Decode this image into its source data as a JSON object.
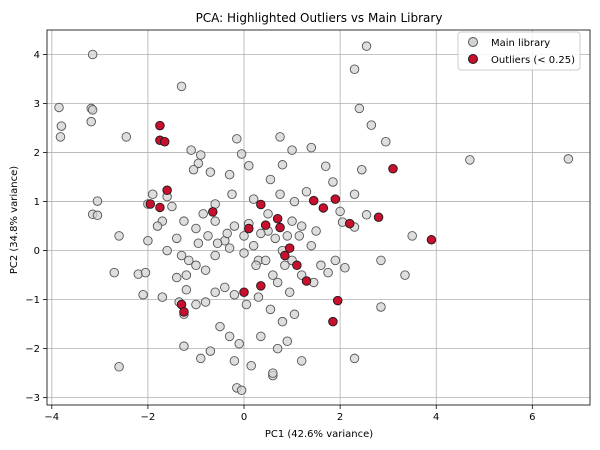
{
  "chart_data": {
    "type": "scatter",
    "title": "PCA: Highlighted Outliers vs Main Library",
    "xlabel": "PC1 (42.6% variance)",
    "ylabel": "PC2 (34.8% variance)",
    "xlim": [
      -4.1,
      7.2
    ],
    "ylim": [
      -3.15,
      4.5
    ],
    "xticks": [
      -4,
      -2,
      0,
      2,
      4,
      6
    ],
    "yticks": [
      -3,
      -2,
      -1,
      0,
      1,
      2,
      3,
      4
    ],
    "grid": true,
    "legend_position": "top-right",
    "series": [
      {
        "name": "Main library",
        "color": "#d3d3d3",
        "edge_color": "#555555",
        "points": [
          [
            -3.15,
            4.0
          ],
          [
            -3.85,
            2.92
          ],
          [
            -3.8,
            2.54
          ],
          [
            -3.82,
            2.32
          ],
          [
            -3.18,
            2.9
          ],
          [
            -3.15,
            2.87
          ],
          [
            -3.18,
            2.63
          ],
          [
            -2.45,
            2.32
          ],
          [
            -1.3,
            3.35
          ],
          [
            2.55,
            4.17
          ],
          [
            2.3,
            3.7
          ],
          [
            2.4,
            2.9
          ],
          [
            2.65,
            2.56
          ],
          [
            2.95,
            2.22
          ],
          [
            4.7,
            1.85
          ],
          [
            6.75,
            1.87
          ],
          [
            -3.05,
            1.01
          ],
          [
            -3.15,
            0.74
          ],
          [
            -3.05,
            0.72
          ],
          [
            -2.6,
            0.3
          ],
          [
            -2.7,
            -0.45
          ],
          [
            -2.6,
            -2.37
          ],
          [
            -2.2,
            -0.48
          ],
          [
            -2.1,
            -0.9
          ],
          [
            -2.05,
            -0.45
          ],
          [
            -1.9,
            1.15
          ],
          [
            -2.0,
            0.95
          ],
          [
            -1.6,
            1.1
          ],
          [
            -1.5,
            0.9
          ],
          [
            -1.7,
            0.6
          ],
          [
            -1.4,
            0.25
          ],
          [
            -1.6,
            0.0
          ],
          [
            -1.3,
            -0.1
          ],
          [
            -1.2,
            -0.5
          ],
          [
            -1.0,
            -0.3
          ],
          [
            -0.8,
            -0.4
          ],
          [
            -0.6,
            -0.1
          ],
          [
            -0.4,
            0.2
          ],
          [
            -0.2,
            0.5
          ],
          [
            0.0,
            0.3
          ],
          [
            0.2,
            0.1
          ],
          [
            0.3,
            -0.2
          ],
          [
            0.5,
            0.4
          ],
          [
            0.6,
            -0.5
          ],
          [
            0.8,
            0.0
          ],
          [
            0.9,
            0.3
          ],
          [
            1.0,
            -0.2
          ],
          [
            1.2,
            0.5
          ],
          [
            1.4,
            0.1
          ],
          [
            1.6,
            -0.3
          ],
          [
            -1.1,
            2.05
          ],
          [
            -0.9,
            1.95
          ],
          [
            -0.95,
            1.78
          ],
          [
            -0.7,
            1.6
          ],
          [
            -1.05,
            1.65
          ],
          [
            -0.15,
            2.28
          ],
          [
            -0.05,
            1.97
          ],
          [
            -0.3,
            1.55
          ],
          [
            0.1,
            1.73
          ],
          [
            0.75,
            2.32
          ],
          [
            0.8,
            1.75
          ],
          [
            1.0,
            2.05
          ],
          [
            1.4,
            2.1
          ],
          [
            1.7,
            1.72
          ],
          [
            2.45,
            1.65
          ],
          [
            2.3,
            1.15
          ],
          [
            1.85,
            1.4
          ],
          [
            2.0,
            0.8
          ],
          [
            2.05,
            0.58
          ],
          [
            2.3,
            0.48
          ],
          [
            2.55,
            0.73
          ],
          [
            1.3,
            1.2
          ],
          [
            1.05,
            1.0
          ],
          [
            0.75,
            1.15
          ],
          [
            0.55,
            1.45
          ],
          [
            0.2,
            1.05
          ],
          [
            -0.25,
            1.15
          ],
          [
            -0.6,
            0.95
          ],
          [
            -0.85,
            0.75
          ],
          [
            -1.0,
            0.45
          ],
          [
            -0.75,
            0.3
          ],
          [
            -0.55,
            0.15
          ],
          [
            -0.3,
            0.05
          ],
          [
            0.0,
            -0.05
          ],
          [
            0.25,
            -0.3
          ],
          [
            0.45,
            -0.2
          ],
          [
            0.7,
            -0.65
          ],
          [
            0.95,
            -0.85
          ],
          [
            1.2,
            -0.5
          ],
          [
            1.45,
            -0.65
          ],
          [
            1.75,
            -0.45
          ],
          [
            -1.4,
            -0.55
          ],
          [
            -1.2,
            -0.8
          ],
          [
            -1.35,
            -1.05
          ],
          [
            -1.25,
            -1.3
          ],
          [
            -1.0,
            -1.1
          ],
          [
            -0.8,
            -1.05
          ],
          [
            -0.6,
            -0.85
          ],
          [
            -0.4,
            -0.75
          ],
          [
            -0.2,
            -0.9
          ],
          [
            0.05,
            -1.1
          ],
          [
            0.3,
            -0.95
          ],
          [
            0.55,
            -1.2
          ],
          [
            0.8,
            -1.45
          ],
          [
            1.05,
            -1.3
          ],
          [
            -0.5,
            -1.55
          ],
          [
            -0.3,
            -1.75
          ],
          [
            -0.1,
            -1.9
          ],
          [
            0.35,
            -1.75
          ],
          [
            0.7,
            -2.0
          ],
          [
            0.9,
            -1.85
          ],
          [
            1.2,
            -2.25
          ],
          [
            -1.25,
            -1.95
          ],
          [
            -0.9,
            -2.2
          ],
          [
            -0.7,
            -2.05
          ],
          [
            -0.2,
            -2.25
          ],
          [
            0.15,
            -2.35
          ],
          [
            0.6,
            -2.55
          ],
          [
            -0.15,
            -2.8
          ],
          [
            -0.05,
            -2.85
          ],
          [
            0.6,
            -2.5
          ],
          [
            2.3,
            -2.2
          ],
          [
            2.85,
            -1.15
          ],
          [
            3.35,
            -0.5
          ],
          [
            2.85,
            -0.2
          ],
          [
            3.5,
            0.3
          ],
          [
            -1.7,
            -0.95
          ],
          [
            -2.0,
            0.2
          ],
          [
            -1.8,
            0.5
          ],
          [
            -1.25,
            0.6
          ],
          [
            -0.6,
            0.6
          ],
          [
            0.5,
            0.75
          ],
          [
            1.0,
            0.6
          ],
          [
            1.5,
            0.4
          ],
          [
            1.9,
            -0.2
          ],
          [
            2.1,
            -0.35
          ],
          [
            -0.35,
            0.35
          ],
          [
            0.1,
            0.55
          ],
          [
            0.65,
            0.25
          ],
          [
            1.15,
            0.3
          ],
          [
            -0.95,
            0.15
          ],
          [
            -1.15,
            -0.2
          ],
          [
            0.35,
            0.35
          ],
          [
            0.85,
            -0.3
          ]
        ]
      },
      {
        "name": "Outliers (< 0.25)",
        "color": "#c8102e",
        "edge_color": "#1a1a1a",
        "points": [
          [
            -1.75,
            2.55
          ],
          [
            -1.75,
            2.25
          ],
          [
            -1.65,
            2.22
          ],
          [
            -1.6,
            1.23
          ],
          [
            -1.95,
            0.95
          ],
          [
            -1.75,
            0.88
          ],
          [
            -0.65,
            0.79
          ],
          [
            0.1,
            0.45
          ],
          [
            0.35,
            0.94
          ],
          [
            0.45,
            0.52
          ],
          [
            0.7,
            0.65
          ],
          [
            0.75,
            0.47
          ],
          [
            0.95,
            0.05
          ],
          [
            0.85,
            -0.1
          ],
          [
            1.1,
            -0.3
          ],
          [
            1.3,
            -0.62
          ],
          [
            1.45,
            1.02
          ],
          [
            1.65,
            0.87
          ],
          [
            1.9,
            1.05
          ],
          [
            2.2,
            0.55
          ],
          [
            2.8,
            0.68
          ],
          [
            3.1,
            1.67
          ],
          [
            3.9,
            0.22
          ],
          [
            1.95,
            -1.02
          ],
          [
            1.85,
            -1.45
          ],
          [
            0.35,
            -0.72
          ],
          [
            0.0,
            -0.85
          ],
          [
            -1.3,
            -1.1
          ],
          [
            -1.25,
            -1.25
          ]
        ]
      }
    ]
  }
}
